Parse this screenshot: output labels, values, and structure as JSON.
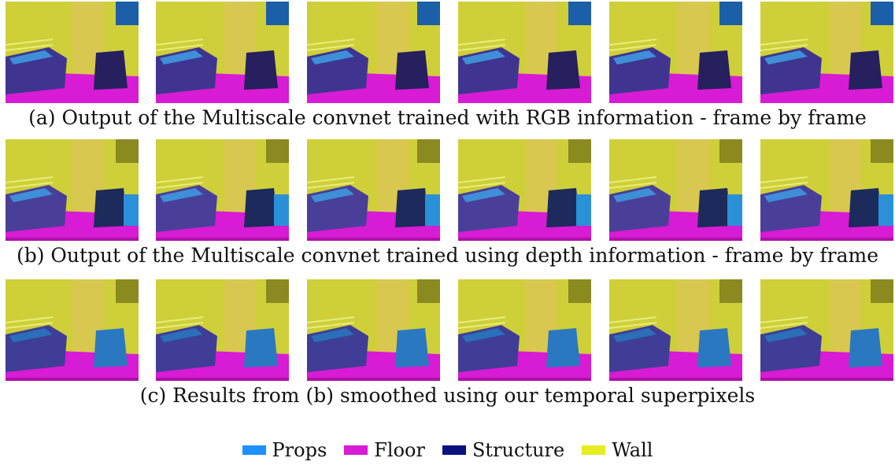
{
  "figure": {
    "captions": {
      "a": "(a) Output of the Multiscale convnet trained with RGB information - frame by frame",
      "b": "(b) Output of the Multiscale convnet trained using depth information - frame by frame",
      "c": "(c) Results from (b) smoothed using our temporal superpixels"
    },
    "frames_per_row": 6
  },
  "legend": {
    "items": [
      {
        "label": "Props",
        "color": "#1e90ff"
      },
      {
        "label": "Floor",
        "color": "#d81bd4"
      },
      {
        "label": "Structure",
        "color": "#0a1280"
      },
      {
        "label": "Wall",
        "color": "#e6ee22"
      }
    ]
  }
}
